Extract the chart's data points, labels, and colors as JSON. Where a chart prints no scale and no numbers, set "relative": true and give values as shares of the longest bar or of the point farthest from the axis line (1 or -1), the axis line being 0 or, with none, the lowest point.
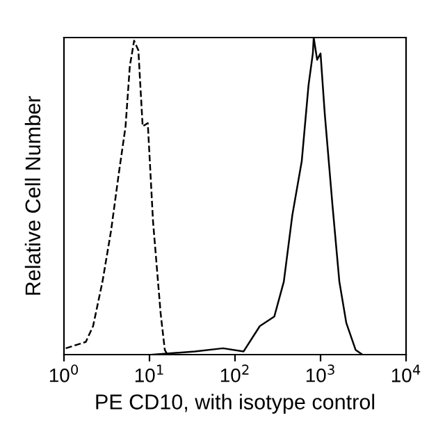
{
  "chart_data": {
    "type": "line",
    "xlabel": "PE CD10, with isotype control",
    "ylabel": "Relative Cell Number",
    "relative": true,
    "log": "x",
    "xlim": [
      1,
      10000
    ],
    "xticks": [
      {
        "value": 1,
        "label": "10$^{0}$"
      },
      {
        "value": 10,
        "label": "10$^{1}$"
      },
      {
        "value": 100,
        "label": "10$^{2}$"
      },
      {
        "value": 1000,
        "label": "10$^{3}$"
      },
      {
        "value": 10000,
        "label": "10$^{4}$"
      }
    ],
    "tick_labels": "x",
    "grid": false,
    "legend": false,
    "series": [
      {
        "color": "#000000",
        "line_style": "dashed",
        "x": [
          1.05,
          1.8,
          2.19,
          2.82,
          3.55,
          4.37,
          5.25,
          5.89,
          6.61,
          7.41,
          8.32,
          9.55,
          11.0,
          13.5,
          15.1,
          16.2
        ],
        "values": [
          0.02,
          0.04,
          0.09,
          0.23,
          0.39,
          0.57,
          0.72,
          0.91,
          0.99,
          0.96,
          0.72,
          0.73,
          0.42,
          0.13,
          0.015,
          0
        ]
      },
      {
        "color": "#000000",
        "line_style": "solid",
        "x": [
          11.0,
          33.9,
          72.4,
          126,
          195,
          288,
          372,
          468,
          603,
          724,
          813,
          832,
          912,
          1000,
          1120,
          1380,
          1660,
          2000,
          2570,
          3090
        ],
        "values": [
          0,
          0.01,
          0.02,
          0.01,
          0.09,
          0.12,
          0.23,
          0.44,
          0.61,
          0.85,
          0.95,
          1.0,
          0.93,
          0.95,
          0.76,
          0.47,
          0.23,
          0.1,
          0.015,
          0
        ]
      }
    ]
  }
}
